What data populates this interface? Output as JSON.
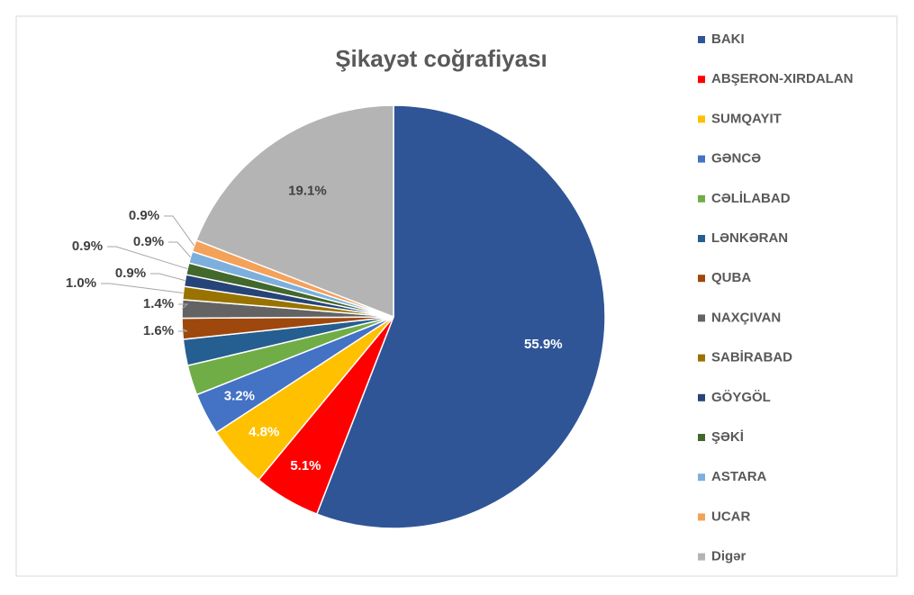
{
  "chart_data": {
    "type": "pie",
    "title": "Şikayət coğrafiyası",
    "categories": [
      "BAKI",
      "ABŞERON-XIRDALAN",
      "SUMQAYIT",
      "GƏNCƏ",
      "CƏLİLABAD",
      "LƏNKƏRAN",
      "QUBA",
      "NAXÇIVAN",
      "SABİRABAD",
      "GÖYGÖL",
      "ŞƏKİ",
      "ASTARA",
      "UCAR",
      "Digər"
    ],
    "values": [
      55.9,
      5.1,
      4.8,
      3.2,
      2.3,
      2.0,
      1.6,
      1.4,
      1.0,
      0.9,
      0.9,
      0.9,
      0.9,
      19.1
    ],
    "value_labels": [
      "55.9%",
      "5.1%",
      "4.8%",
      "3.2%",
      null,
      null,
      "1.6%",
      "1.4%",
      "1.0%",
      "0.9%",
      "0.9%",
      "0.9%",
      "0.9%",
      "19.1%"
    ],
    "colors": [
      "#2f5597",
      "#ff0000",
      "#ffc000",
      "#4472c4",
      "#70ad47",
      "#255e91",
      "#9e480e",
      "#636363",
      "#997300",
      "#264478",
      "#43682b",
      "#7cafdd",
      "#f4a15a",
      "#b4b4b4"
    ],
    "legend": "right"
  }
}
